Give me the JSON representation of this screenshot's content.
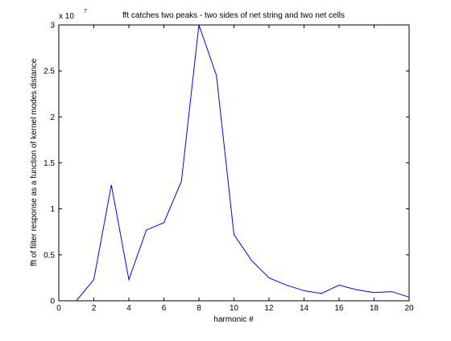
{
  "chart_data": {
    "type": "line",
    "title": "fft catches two peaks - two sides of net string and two net cells",
    "xlabel": "harmonic #",
    "ylabel": "fft of filter response as a function of kernel modes distance",
    "y_exponent_label": "x 10",
    "y_exponent_power": "7",
    "xlim": [
      0,
      20
    ],
    "ylim": [
      0,
      3
    ],
    "xticks": [
      0,
      2,
      4,
      6,
      8,
      10,
      12,
      14,
      16,
      18,
      20
    ],
    "yticks": [
      0,
      0.5,
      1,
      1.5,
      2,
      2.5,
      3
    ],
    "x": [
      1,
      2,
      3,
      4,
      5,
      6,
      7,
      8,
      9,
      10,
      11,
      12,
      13,
      14,
      15,
      16,
      17,
      18,
      19,
      20
    ],
    "series": [
      {
        "color": "#0000ff",
        "values": [
          0.0,
          0.23,
          1.26,
          0.23,
          0.77,
          0.85,
          1.3,
          3.0,
          2.45,
          0.72,
          0.44,
          0.25,
          0.17,
          0.11,
          0.08,
          0.17,
          0.12,
          0.09,
          0.1,
          0.04
        ]
      }
    ],
    "grid": false,
    "box": true,
    "legend": "none"
  }
}
